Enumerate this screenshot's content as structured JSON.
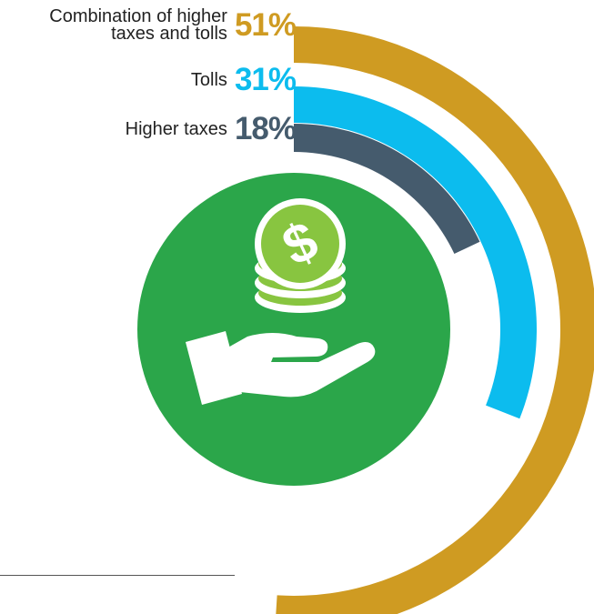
{
  "chart_data": {
    "type": "radial-bar",
    "title": "",
    "series": [
      {
        "name": "Combination of higher taxes and tolls",
        "name_lines": [
          "Combination of higher",
          "taxes and tolls"
        ],
        "value": 51,
        "label": "51%",
        "color": "#CF9B22"
      },
      {
        "name": "Tolls",
        "name_lines": [
          "Tolls"
        ],
        "value": 31,
        "label": "31%",
        "color": "#0CBCEE"
      },
      {
        "name": "Higher taxes",
        "name_lines": [
          "Higher taxes"
        ],
        "value": 18,
        "label": "18%",
        "color": "#455B6D"
      }
    ],
    "center_icon": "hand-holding-coins-icon",
    "center_color": "#2BA64A",
    "coin_color": "#88C540"
  }
}
